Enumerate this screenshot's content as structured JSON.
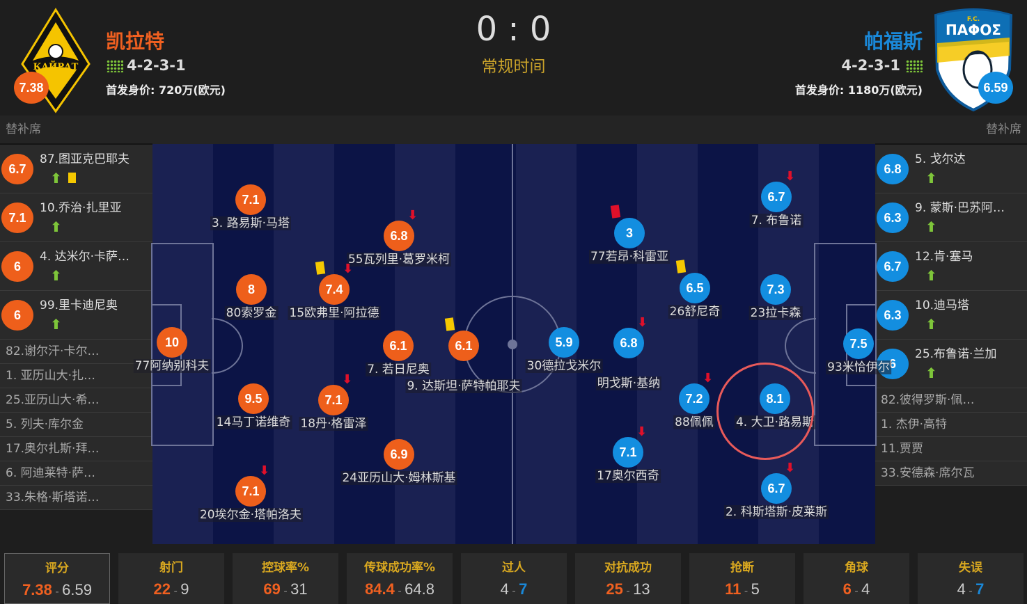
{
  "header": {
    "home": {
      "name": "凯拉特",
      "formation": "4-2-3-1",
      "value": "首发身价: 720万(欧元)",
      "rating": "7.38",
      "logo_text": "КАЙРАТ"
    },
    "away": {
      "name": "帕福斯",
      "formation": "4-2-3-1",
      "value": "首发身价: 1180万(欧元)",
      "rating": "6.59",
      "logo_text": "F.C. ΠΑΦΟΣ"
    },
    "score": "0 : 0",
    "period": "常规时间"
  },
  "colors": {
    "home": "#ee5f1b",
    "away": "#138ee0",
    "pitch": "#0c1446",
    "highlight": "#e85a5a"
  },
  "bench_label": "替补席",
  "home_bench": {
    "subs": [
      {
        "rating": "6.7",
        "name": "87.图亚克巴耶夫",
        "yellow": true
      },
      {
        "rating": "7.1",
        "name": "10.乔治·扎里亚"
      },
      {
        "rating": "6",
        "name": "4. 达米尔·卡萨…"
      },
      {
        "rating": "6",
        "name": "99.里卡迪尼奥"
      }
    ],
    "unused": [
      "82.谢尔汗·卡尔…",
      " 1. 亚历山大·扎…",
      "25.亚历山大·希…",
      " 5. 列夫·库尔金",
      "17.奥尔扎斯·拜…",
      " 6. 阿迪莱特·萨…",
      "33.朱格·斯塔诺…"
    ]
  },
  "away_bench": {
    "subs": [
      {
        "rating": "6.8",
        "name": "5. 戈尔达"
      },
      {
        "rating": "6.3",
        "name": "9. 蒙斯·巴苏阿…"
      },
      {
        "rating": "6.7",
        "name": "12.肯·塞马"
      },
      {
        "rating": "6.3",
        "name": "10.迪马塔"
      },
      {
        "rating": "6",
        "name": "25.布鲁诺·兰加"
      }
    ],
    "unused": [
      "82.彼得罗斯·佩…",
      " 1. 杰伊·高特",
      "11.贾贾",
      "33.安德森·席尔瓦"
    ]
  },
  "home_players": [
    {
      "rating": "10",
      "name": "77阿纳别科夫"
    },
    {
      "rating": "7.1",
      "name": "3. 路易斯·马塔"
    },
    {
      "rating": "8",
      "name": "80索罗金"
    },
    {
      "rating": "9.5",
      "name": "14马丁诺维奇"
    },
    {
      "rating": "7.1",
      "name": "20埃尔金·塔帕洛夫",
      "subbed_off": true
    },
    {
      "rating": "6.8",
      "name": "55瓦列里·葛罗米柯",
      "subbed_off": true
    },
    {
      "rating": "7.4",
      "name": "15欧弗里·阿拉德",
      "subbed_off": true,
      "card": "yellow"
    },
    {
      "rating": "7.1",
      "name": "18丹·格雷泽",
      "subbed_off": true
    },
    {
      "rating": "6.1",
      "name": "7. 若日尼奥"
    },
    {
      "rating": "6.9",
      "name": "24亚历山大·姆林斯基"
    },
    {
      "rating": "6.1",
      "name": "9. 达斯坦·萨特帕耶夫",
      "card": "yellow"
    }
  ],
  "away_players": [
    {
      "rating": "7.5",
      "name": "93米恰伊尔"
    },
    {
      "rating": "6.7",
      "name": "7. 布鲁诺",
      "subbed_off": true
    },
    {
      "rating": "7.3",
      "name": "23拉卡森"
    },
    {
      "rating": "8.1",
      "name": "4. 大卫·路易斯",
      "highlighted": true
    },
    {
      "rating": "6.7",
      "name": "2. 科斯塔斯·皮莱斯",
      "subbed_off": true
    },
    {
      "rating": "6.5",
      "name": "26舒尼奇",
      "card": "yellow"
    },
    {
      "rating": "7.2",
      "name": "88佩佩",
      "subbed_off": true
    },
    {
      "rating": "3",
      "name": "77若昂·科雷亚",
      "card": "red"
    },
    {
      "rating": "6.8",
      "name": "明戈斯·基纳",
      "subbed_off": true
    },
    {
      "rating": "7.1",
      "name": "17奥尔西奇",
      "subbed_off": true
    },
    {
      "rating": "5.9",
      "name": "30德拉戈米尔"
    }
  ],
  "stats": [
    {
      "label": "评分",
      "home": "7.38",
      "away": "6.59"
    },
    {
      "label": "射门",
      "home": "22",
      "away": "9"
    },
    {
      "label": "控球率%",
      "home": "69",
      "away": "31"
    },
    {
      "label": "传球成功率%",
      "home": "84.4",
      "away": "64.8"
    },
    {
      "label": "过人",
      "home": "4",
      "away": "7"
    },
    {
      "label": "对抗成功",
      "home": "25",
      "away": "13"
    },
    {
      "label": "抢断",
      "home": "11",
      "away": "5"
    },
    {
      "label": "角球",
      "home": "6",
      "away": "4"
    },
    {
      "label": "失误",
      "home": "4",
      "away": "7"
    }
  ]
}
